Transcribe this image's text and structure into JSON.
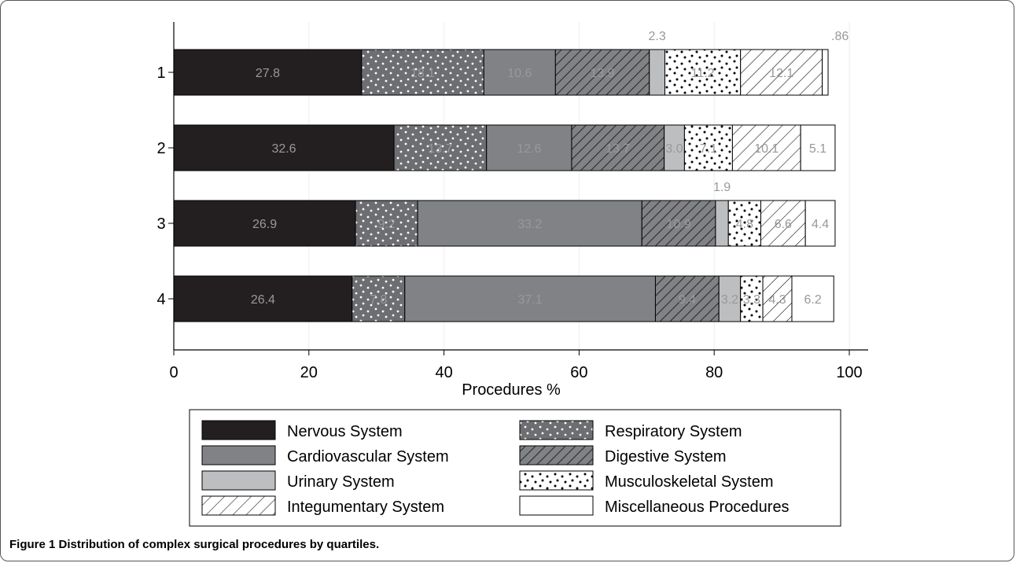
{
  "caption": {
    "label": "Figure 1",
    "text": "Distribution of complex surgical procedures by quartiles."
  },
  "chart_data": {
    "type": "bar",
    "orientation": "horizontal",
    "stacked": true,
    "categories": [
      "1",
      "2",
      "3",
      "4"
    ],
    "xlabel": "Procedures %",
    "ylabel": "",
    "xlim": [
      0,
      100
    ],
    "xticks": [
      "0",
      "20",
      "40",
      "60",
      "80",
      "100"
    ],
    "grid": true,
    "legend_position": "bottom",
    "series": [
      {
        "name": "Nervous System",
        "values": [
          27.8,
          32.6,
          26.9,
          26.4
        ],
        "labels": [
          "27.8",
          "32.6",
          "26.9",
          "26.4"
        ],
        "color": "#231f20",
        "pattern": "solid"
      },
      {
        "name": "Respiratory System",
        "values": [
          18.1,
          13.7,
          9.2,
          7.8
        ],
        "labels": [
          "18.1",
          "13.7",
          "9.2",
          "7.8"
        ],
        "color": "#6d6e71",
        "pattern": "white-dots"
      },
      {
        "name": "Cardiovascular System",
        "values": [
          10.6,
          12.6,
          33.2,
          37.1
        ],
        "labels": [
          "10.6",
          "12.6",
          "33.2",
          "37.1"
        ],
        "color": "#808285",
        "pattern": "solid"
      },
      {
        "name": "Digestive System",
        "values": [
          13.9,
          13.7,
          10.9,
          9.4
        ],
        "labels": [
          "13.9",
          "13.7",
          "10.9",
          "9.4"
        ],
        "color": "#808285",
        "pattern": "dense-diagonal"
      },
      {
        "name": "Urinary System",
        "values": [
          2.3,
          3.0,
          1.9,
          3.2
        ],
        "labels": [
          "2.3",
          "3.0",
          "1.9",
          "3.2"
        ],
        "color": "#bcbec0",
        "pattern": "solid"
      },
      {
        "name": "Musculoskeletal System",
        "values": [
          11.2,
          7.1,
          4.8,
          3.3
        ],
        "labels": [
          "11.2",
          "7.1",
          "4.8",
          "3.3"
        ],
        "color": "#ffffff",
        "pattern": "black-dots"
      },
      {
        "name": "Integumentary System",
        "values": [
          12.1,
          10.1,
          6.6,
          4.3
        ],
        "labels": [
          "12.1",
          "10.1",
          "6.6",
          "4.3"
        ],
        "color": "#ffffff",
        "pattern": "sparse-diagonal"
      },
      {
        "name": "Miscellaneous Procedures",
        "values": [
          0.86,
          5.1,
          4.4,
          6.2
        ],
        "labels": [
          ".86",
          "5.1",
          "4.4",
          "6.2"
        ],
        "color": "#ffffff",
        "pattern": "solid"
      }
    ]
  }
}
